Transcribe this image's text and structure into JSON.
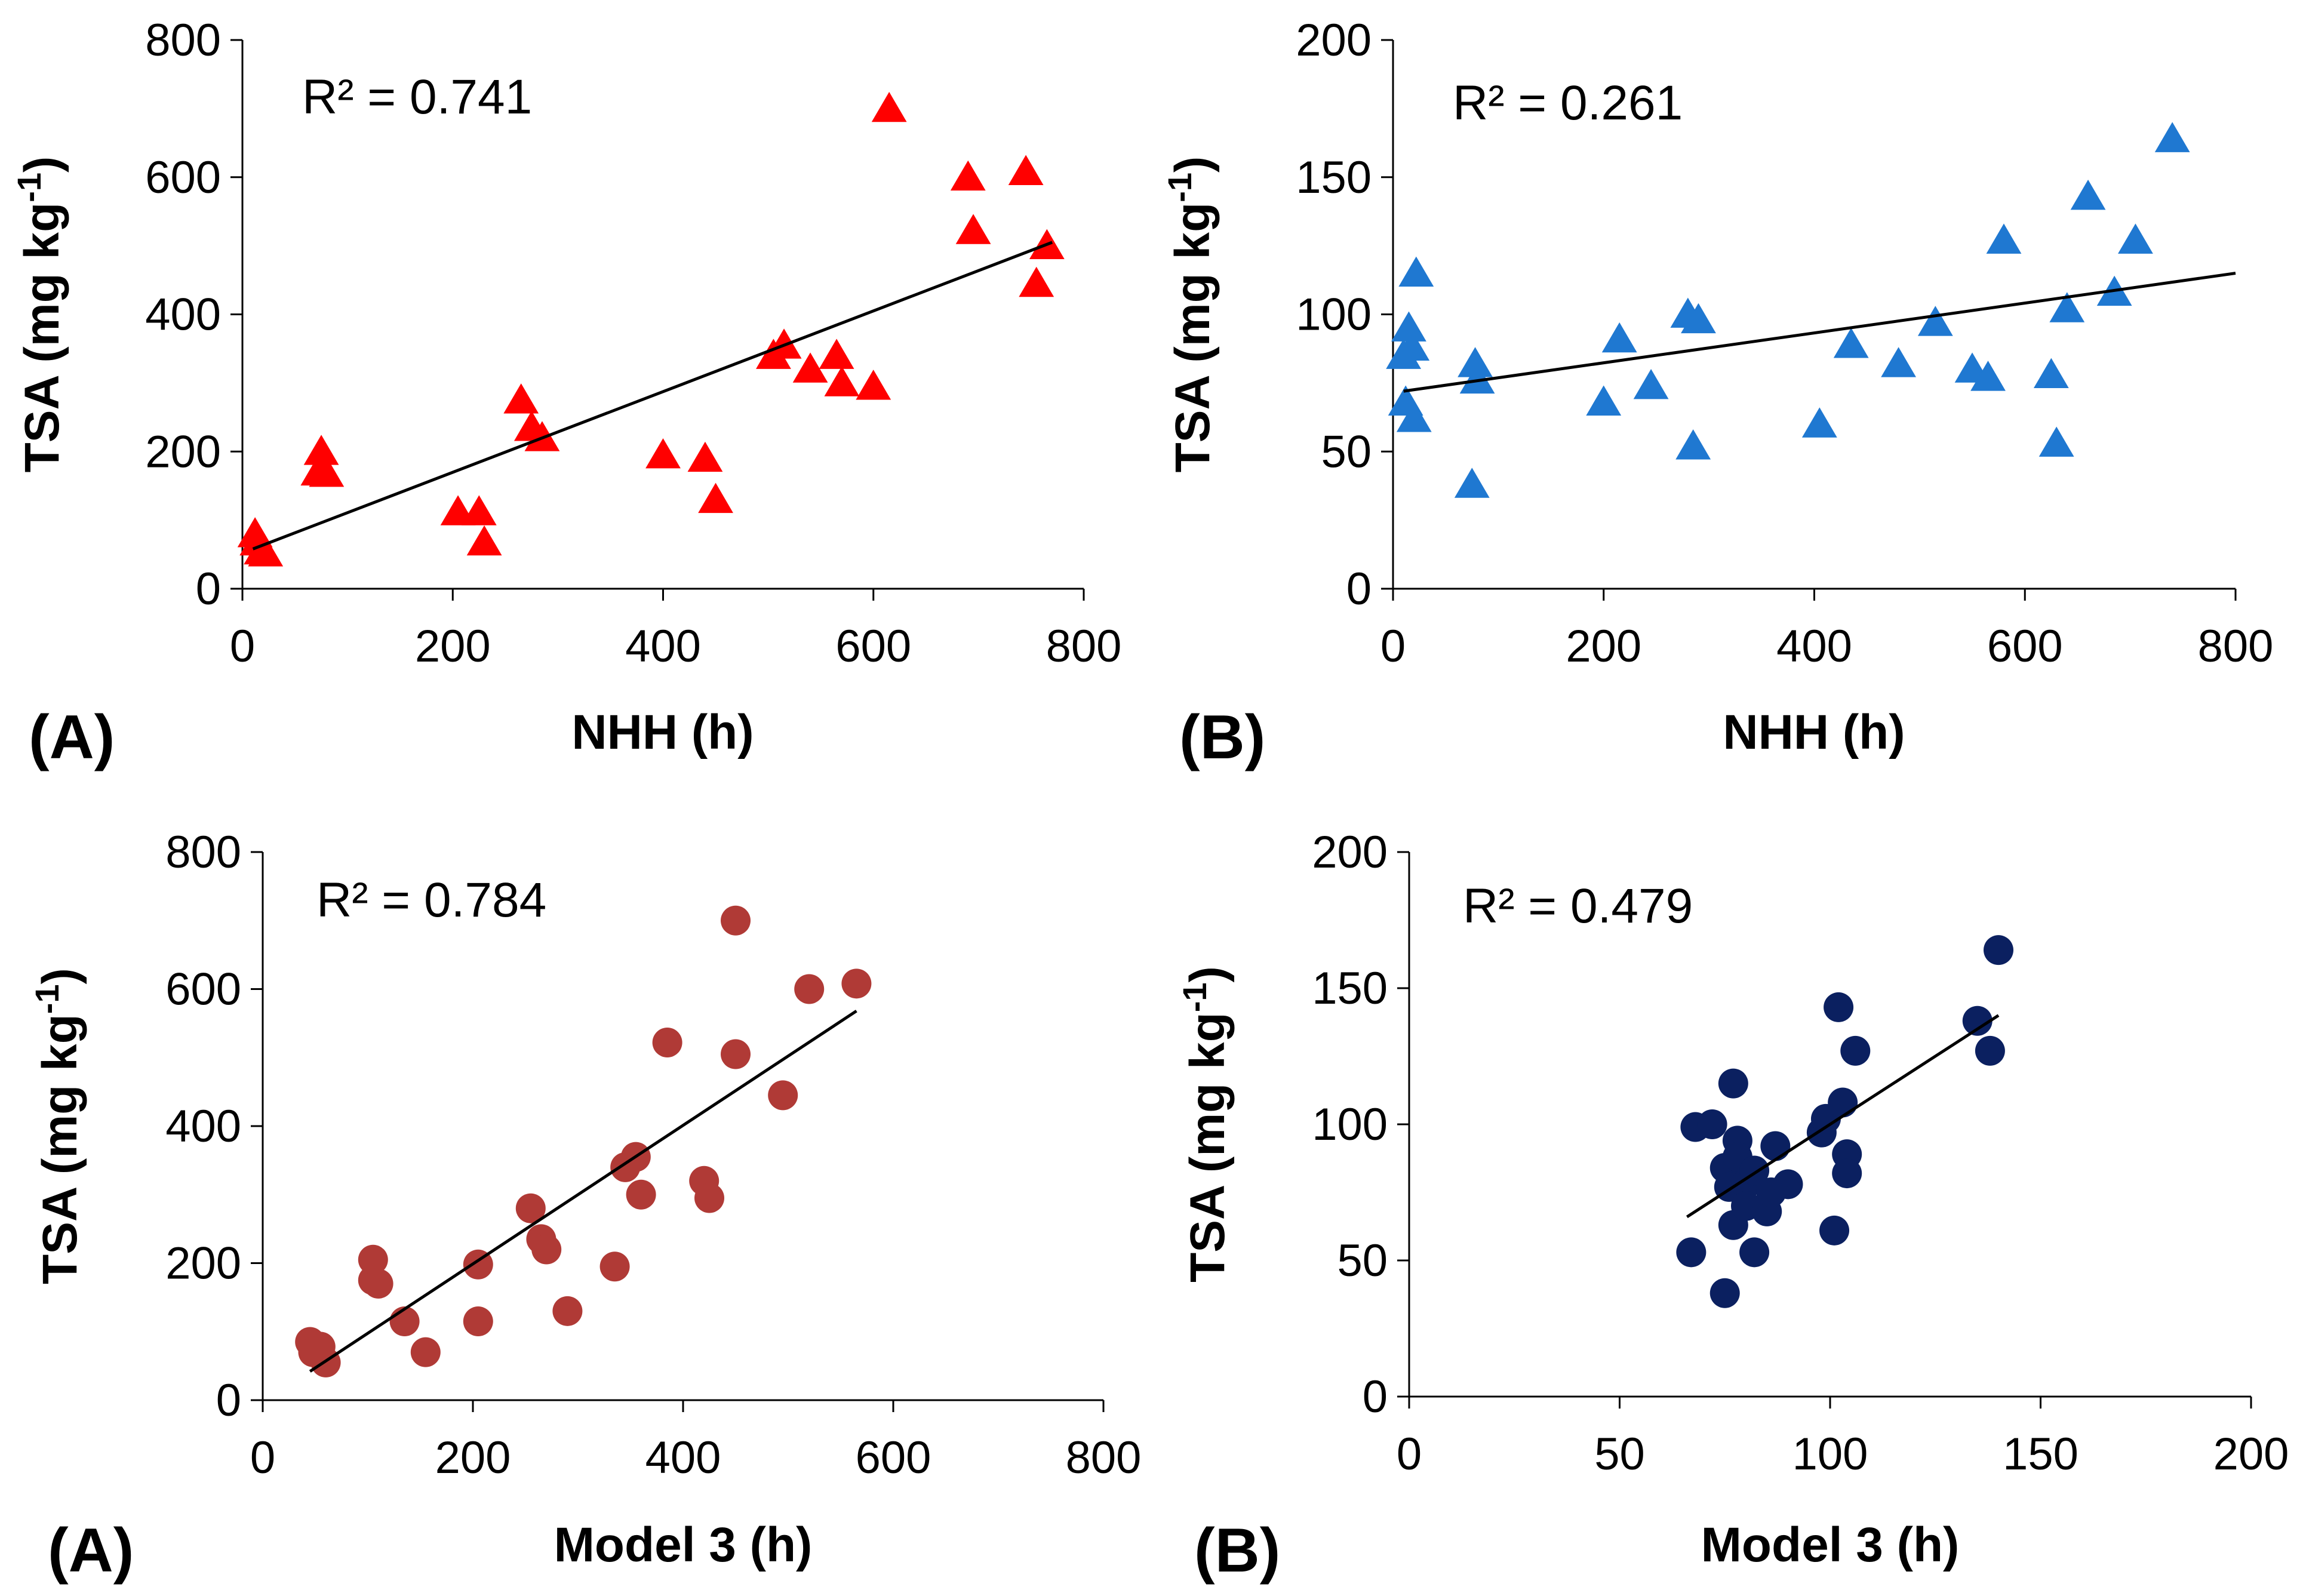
{
  "chart_data": [
    {
      "type": "scatter",
      "panel_label": "(A)",
      "xlabel": "NHH (h)",
      "ylabel_main": "TSA (mg kg",
      "ylabel_sup": "-1",
      "ylabel_close": ")",
      "annotation": "R² = 0.741",
      "xlim": [
        0,
        800
      ],
      "ylim": [
        0,
        800
      ],
      "xticks": [
        0,
        200,
        400,
        600,
        800
      ],
      "yticks": [
        0,
        200,
        400,
        600,
        800
      ],
      "marker": "triangle",
      "color": "#ff0000",
      "trendline": [
        [
          10,
          58
        ],
        [
          770,
          505
        ]
      ],
      "points": [
        [
          12,
          80
        ],
        [
          14,
          68
        ],
        [
          18,
          55
        ],
        [
          22,
          52
        ],
        [
          75,
          200
        ],
        [
          72,
          170
        ],
        [
          80,
          168
        ],
        [
          205,
          112
        ],
        [
          225,
          112
        ],
        [
          230,
          68
        ],
        [
          265,
          275
        ],
        [
          275,
          235
        ],
        [
          285,
          220
        ],
        [
          400,
          195
        ],
        [
          440,
          190
        ],
        [
          450,
          130
        ],
        [
          505,
          340
        ],
        [
          515,
          355
        ],
        [
          540,
          320
        ],
        [
          565,
          340
        ],
        [
          570,
          300
        ],
        [
          600,
          295
        ],
        [
          615,
          700
        ],
        [
          690,
          600
        ],
        [
          695,
          522
        ],
        [
          745,
          608
        ],
        [
          755,
          445
        ],
        [
          765,
          500
        ]
      ]
    },
    {
      "type": "scatter",
      "panel_label": "(B)",
      "xlabel": "NHH (h)",
      "ylabel_main": "TSA (mg kg",
      "ylabel_sup": "-1",
      "ylabel_close": ")",
      "annotation": "R² = 0.261",
      "xlim": [
        0,
        800
      ],
      "ylim": [
        0,
        200
      ],
      "xticks": [
        0,
        200,
        400,
        600,
        800
      ],
      "yticks": [
        0,
        50,
        100,
        150,
        200
      ],
      "marker": "triangle",
      "color": "#1f78d1",
      "trendline": [
        [
          10,
          72
        ],
        [
          800,
          115
        ]
      ],
      "points": [
        [
          10,
          85
        ],
        [
          12,
          68
        ],
        [
          15,
          95
        ],
        [
          18,
          88
        ],
        [
          20,
          62
        ],
        [
          22,
          115
        ],
        [
          75,
          38
        ],
        [
          78,
          82
        ],
        [
          80,
          76
        ],
        [
          200,
          68
        ],
        [
          215,
          91
        ],
        [
          245,
          74
        ],
        [
          280,
          100
        ],
        [
          285,
          52
        ],
        [
          290,
          98
        ],
        [
          405,
          60
        ],
        [
          435,
          89
        ],
        [
          480,
          82
        ],
        [
          515,
          97
        ],
        [
          550,
          80
        ],
        [
          565,
          77
        ],
        [
          580,
          127
        ],
        [
          625,
          78
        ],
        [
          630,
          53
        ],
        [
          640,
          102
        ],
        [
          660,
          143
        ],
        [
          685,
          108
        ],
        [
          705,
          127
        ],
        [
          740,
          164
        ]
      ]
    },
    {
      "type": "scatter",
      "panel_label": "(A)",
      "xlabel": "Model 3 (h)",
      "ylabel_main": "TSA (mg kg",
      "ylabel_sup": "-1",
      "ylabel_close": ")",
      "annotation": "R² = 0.784",
      "xlim": [
        0,
        800
      ],
      "ylim": [
        0,
        800
      ],
      "xticks": [
        0,
        200,
        400,
        600,
        800
      ],
      "yticks": [
        0,
        200,
        400,
        600,
        800
      ],
      "marker": "circle",
      "color": "#b03a36",
      "trendline": [
        [
          45,
          42
        ],
        [
          565,
          568
        ]
      ],
      "points": [
        [
          45,
          85
        ],
        [
          48,
          70
        ],
        [
          55,
          78
        ],
        [
          60,
          55
        ],
        [
          105,
          205
        ],
        [
          105,
          175
        ],
        [
          110,
          170
        ],
        [
          135,
          115
        ],
        [
          155,
          70
        ],
        [
          205,
          198
        ],
        [
          205,
          115
        ],
        [
          255,
          280
        ],
        [
          265,
          235
        ],
        [
          270,
          220
        ],
        [
          290,
          130
        ],
        [
          335,
          195
        ],
        [
          345,
          340
        ],
        [
          355,
          355
        ],
        [
          360,
          300
        ],
        [
          385,
          522
        ],
        [
          420,
          320
        ],
        [
          425,
          295
        ],
        [
          450,
          700
        ],
        [
          450,
          505
        ],
        [
          495,
          445
        ],
        [
          520,
          600
        ],
        [
          565,
          608
        ]
      ]
    },
    {
      "type": "scatter",
      "panel_label": "(B)",
      "xlabel": "Model 3 (h)",
      "ylabel_main": "TSA (mg kg",
      "ylabel_sup": "-1",
      "ylabel_close": ")",
      "annotation": "R² = 0.479",
      "xlim": [
        0,
        200
      ],
      "ylim": [
        0,
        200
      ],
      "xticks": [
        0,
        50,
        100,
        150,
        200
      ],
      "yticks": [
        0,
        50,
        100,
        150,
        200
      ],
      "marker": "circle",
      "color": "#0b2060",
      "trendline": [
        [
          66,
          66
        ],
        [
          140,
          140
        ]
      ],
      "points": [
        [
          67,
          53
        ],
        [
          68,
          99
        ],
        [
          72,
          100
        ],
        [
          75,
          84
        ],
        [
          76,
          77
        ],
        [
          75,
          38
        ],
        [
          77,
          115
        ],
        [
          77,
          63
        ],
        [
          78,
          94
        ],
        [
          78,
          88
        ],
        [
          80,
          78
        ],
        [
          80,
          70
        ],
        [
          82,
          53
        ],
        [
          82,
          83
        ],
        [
          85,
          68
        ],
        [
          86,
          75
        ],
        [
          87,
          92
        ],
        [
          90,
          78
        ],
        [
          98,
          97
        ],
        [
          99,
          102
        ],
        [
          101,
          61
        ],
        [
          102,
          143
        ],
        [
          103,
          108
        ],
        [
          104,
          89
        ],
        [
          104,
          82
        ],
        [
          106,
          127
        ],
        [
          135,
          138
        ],
        [
          138,
          127
        ],
        [
          140,
          164
        ]
      ]
    }
  ]
}
